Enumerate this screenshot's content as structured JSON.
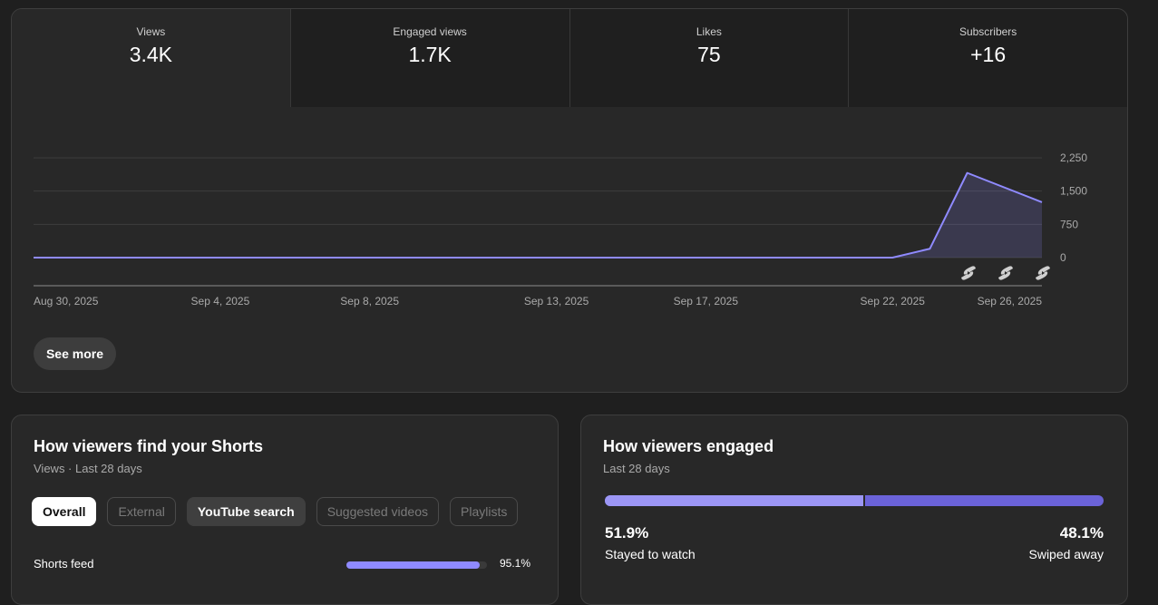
{
  "overview": {
    "metrics": [
      {
        "label": "Views",
        "value": "3.4K",
        "selected": true
      },
      {
        "label": "Engaged views",
        "value": "1.7K",
        "selected": false
      },
      {
        "label": "Likes",
        "value": "75",
        "selected": false
      },
      {
        "label": "Subscribers",
        "value": "+16",
        "selected": false
      }
    ],
    "see_more_label": "See more"
  },
  "chart_data": {
    "type": "area",
    "series": [
      {
        "color": "#8f8aff",
        "x": [
          "Aug 30, 2025",
          "Sep 22, 2025",
          "Sep 23, 2025",
          "Sep 24, 2025",
          "Sep 26, 2025"
        ],
        "values": [
          0,
          0,
          200,
          1910,
          1250
        ]
      }
    ],
    "x_tick_labels": [
      "Aug 30, 2025",
      "Sep 4, 2025",
      "Sep 8, 2025",
      "Sep 13, 2025",
      "Sep 17, 2025",
      "Sep 22, 2025",
      "Sep 26, 2025"
    ],
    "y_tick_labels": [
      "0",
      "750",
      "1,500",
      "2,250"
    ],
    "ylim": [
      0,
      2250
    ],
    "grid": true,
    "legend": "none",
    "markers": [
      "shorts-icon",
      "shorts-icon",
      "shorts-icon"
    ]
  },
  "find_card": {
    "title": "How viewers find your Shorts",
    "subtitle": "Views · Last 28 days",
    "chips": [
      {
        "label": "Overall",
        "state": "selected"
      },
      {
        "label": "External",
        "state": "disabled"
      },
      {
        "label": "YouTube search",
        "state": "active"
      },
      {
        "label": "Suggested videos",
        "state": "disabled"
      },
      {
        "label": "Playlists",
        "state": "disabled"
      }
    ],
    "sources": [
      {
        "label": "Shorts feed",
        "percent": "95.1%",
        "fraction": 0.951
      }
    ]
  },
  "engaged_card": {
    "title": "How viewers engaged",
    "subtitle": "Last 28 days",
    "stayed": {
      "percent": "51.9%",
      "label": "Stayed to watch",
      "fraction": 0.519
    },
    "swiped": {
      "percent": "48.1%",
      "label": "Swiped away",
      "fraction": 0.481
    },
    "colors": {
      "stayed": "#9c96f5",
      "swiped": "#6b63d9"
    }
  }
}
